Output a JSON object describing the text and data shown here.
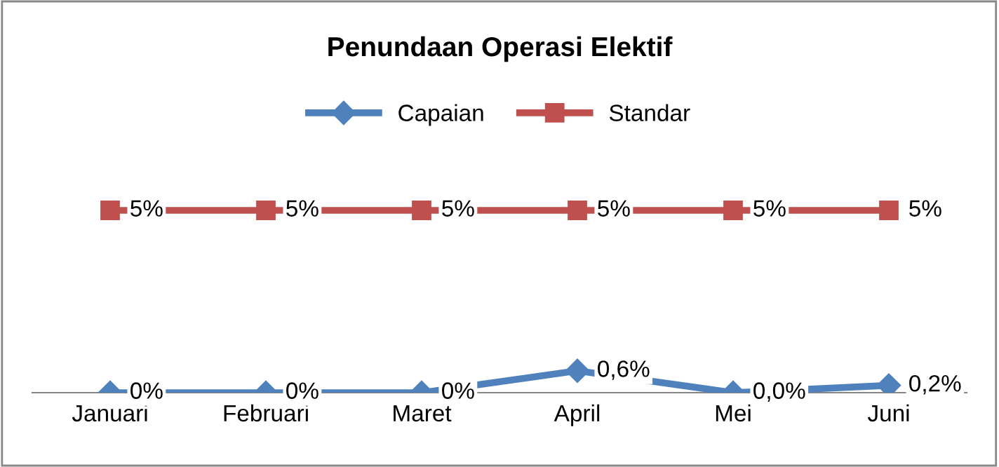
{
  "chart_data": {
    "type": "line",
    "title": "Penundaan Operasi Elektif",
    "categories": [
      "Januari",
      "Februari",
      "Maret",
      "April",
      "Mei",
      "Juni"
    ],
    "series": [
      {
        "name": "Capaian",
        "color": "#4f81bd",
        "marker": "diamond",
        "values": [
          0,
          0,
          0,
          0.6,
          0.0,
          0.2
        ],
        "value_labels": [
          "0%",
          "0%",
          "0%",
          "0,6%",
          "0,0%",
          "0,2%"
        ]
      },
      {
        "name": "Standar",
        "color": "#c0504d",
        "marker": "square",
        "values": [
          5,
          5,
          5,
          5,
          5,
          5
        ],
        "value_labels": [
          "5%",
          "5%",
          "5%",
          "5%",
          "5%",
          "5%"
        ]
      }
    ],
    "tick_labels": "x",
    "grid": false,
    "legend": "top"
  }
}
